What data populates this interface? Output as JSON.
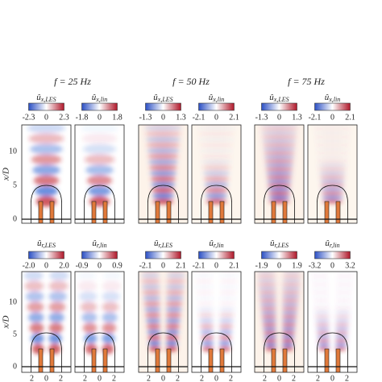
{
  "headers": [
    "f = 25 Hz",
    "f = 50 Hz",
    "f = 75 Hz"
  ],
  "rows": [
    {
      "y_label": "x/D",
      "y_ticks": [
        "0",
        "5",
        "10"
      ],
      "panels": [
        {
          "symbol": "û",
          "sub": "x,LES",
          "ticks": [
            "-2.3",
            "0",
            "2.3"
          ]
        },
        {
          "symbol": "û",
          "sub": "x,lin",
          "ticks": [
            "-1.8",
            "0",
            "1.8"
          ]
        },
        {
          "symbol": "û",
          "sub": "x,LES",
          "ticks": [
            "-1.3",
            "0",
            "1.3"
          ]
        },
        {
          "symbol": "û",
          "sub": "x,lin",
          "ticks": [
            "-2.1",
            "0",
            "2.1"
          ]
        },
        {
          "symbol": "û",
          "sub": "x,LES",
          "ticks": [
            "-1.3",
            "0",
            "1.3"
          ]
        },
        {
          "symbol": "û",
          "sub": "x,lin",
          "ticks": [
            "-2.1",
            "0",
            "2.1"
          ]
        }
      ]
    },
    {
      "y_label": "x/D",
      "y_ticks": [
        "0",
        "5",
        "10"
      ],
      "panels": [
        {
          "symbol": "û",
          "sub": "r,LES",
          "ticks": [
            "-2.0",
            "0",
            "2.0"
          ]
        },
        {
          "symbol": "û",
          "sub": "r,lin",
          "ticks": [
            "-0.9",
            "0",
            "0.9"
          ]
        },
        {
          "symbol": "û",
          "sub": "r,LES",
          "ticks": [
            "-2.1",
            "0",
            "2.1"
          ]
        },
        {
          "symbol": "û",
          "sub": "r,lin",
          "ticks": [
            "-2.1",
            "0",
            "2.1"
          ]
        },
        {
          "symbol": "û",
          "sub": "r,LES",
          "ticks": [
            "-1.9",
            "0",
            "1.9"
          ]
        },
        {
          "symbol": "û",
          "sub": "r,lin",
          "ticks": [
            "-3.2",
            "0",
            "3.2"
          ]
        }
      ]
    }
  ],
  "x_ticks": [
    "2",
    "0",
    "2"
  ]
}
